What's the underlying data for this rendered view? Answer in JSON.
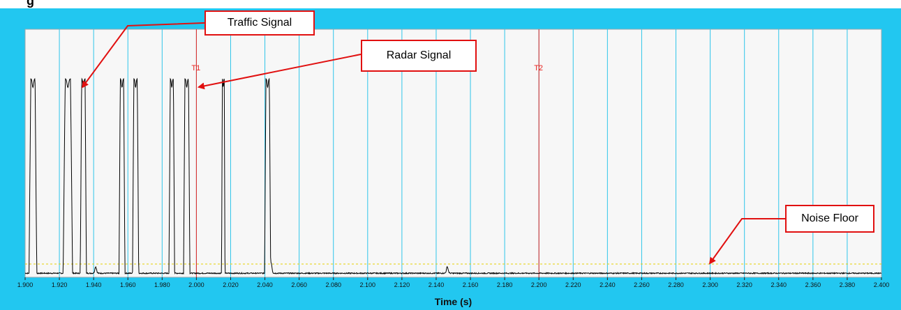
{
  "chart_data": {
    "type": "line",
    "title": "",
    "xlabel": "Time (s)",
    "ylabel": "",
    "xlim": [
      1.9,
      2.4
    ],
    "ylim": [
      0,
      1
    ],
    "x_ticks": [
      "1.900",
      "1.920",
      "1.940",
      "1.960",
      "1.980",
      "2.000",
      "2.020",
      "2.040",
      "2.060",
      "2.080",
      "2.100",
      "2.120",
      "2.140",
      "2.160",
      "2.180",
      "2.200",
      "2.220",
      "2.240",
      "2.260",
      "2.280",
      "2.300",
      "2.320",
      "2.340",
      "2.360",
      "2.380",
      "2.400"
    ],
    "grid": "vertical",
    "noise_threshold": 0.045,
    "series": [
      {
        "pulses": [
          [
            1.9023,
            1.9068
          ],
          [
            1.9222,
            1.9277
          ],
          [
            1.9322,
            1.9358
          ],
          [
            1.9548,
            1.9583
          ],
          [
            1.9627,
            1.9663
          ],
          [
            1.984,
            1.9873
          ],
          [
            1.9925,
            1.9962
          ],
          [
            2.0147,
            2.0167
          ],
          [
            2.0398,
            2.0434
          ]
        ],
        "pulse_level": 0.9,
        "small_bumps": [
          [
            1.9412,
            0.03
          ],
          [
            2.0436,
            0.05
          ],
          [
            2.1465,
            0.03
          ]
        ],
        "noise_level": 0.005
      }
    ],
    "cursors": [
      {
        "label": "T1",
        "x": 2.0
      },
      {
        "label": "T2",
        "x": 2.2
      }
    ],
    "annotations": [
      {
        "text": "Traffic Signal",
        "target_x": 1.9335,
        "target_y": 0.5
      },
      {
        "text": "Radar Signal",
        "target_x": 2.0014,
        "target_y": 0.5
      },
      {
        "text": "Noise Floor",
        "target_x": 2.2998,
        "target_y": 0.0
      }
    ]
  },
  "colors": {
    "frame": "#22c7f0",
    "plot_bg": "#f7f7f7",
    "grid": "#2fc5ea",
    "signal": "#000000",
    "cursor": "#e8231f",
    "threshold": "#e6d100",
    "callout": "#e11010"
  }
}
